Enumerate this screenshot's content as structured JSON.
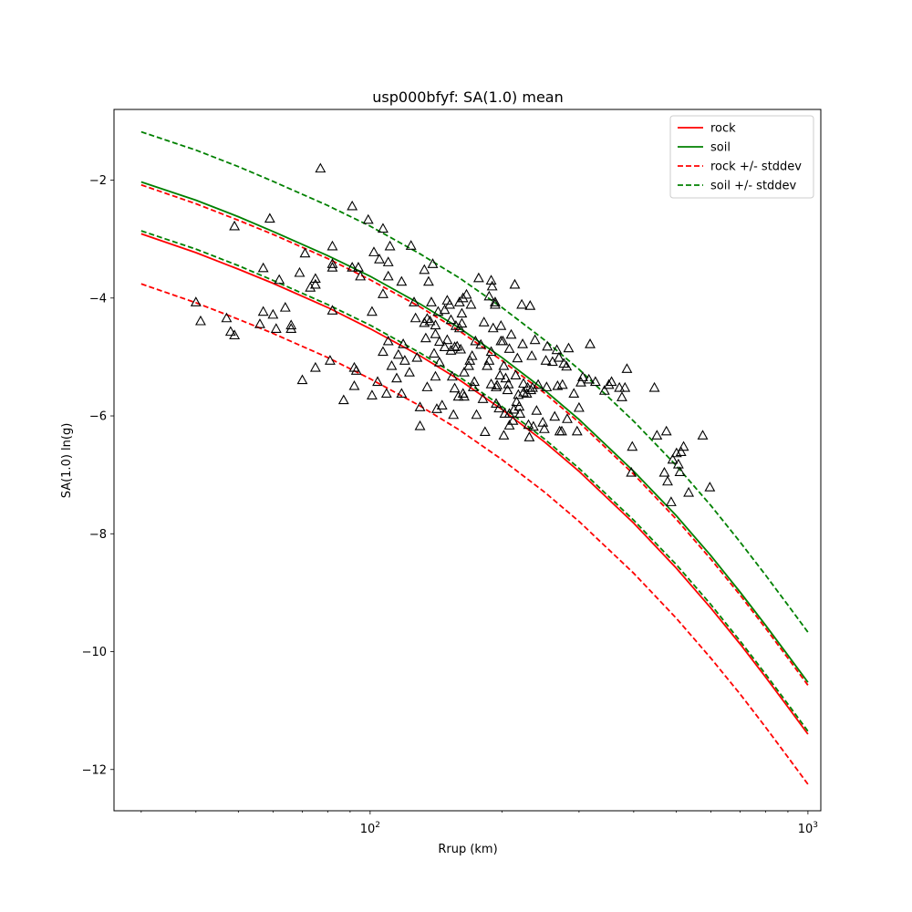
{
  "chart_data": {
    "type": "scatter",
    "title": "usp000bfyf: SA(1.0) mean",
    "xlabel": "Rrup (km)",
    "ylabel": "SA(1.0) ln(g)",
    "xscale": "log",
    "xlim": [
      26,
      1070
    ],
    "ylim": [
      -12.7,
      -0.8
    ],
    "x_ticks": [
      {
        "value": 100,
        "label": "10",
        "sup": "2"
      },
      {
        "value": 1000,
        "label": "10",
        "sup": "3"
      }
    ],
    "y_ticks": [
      {
        "value": -2,
        "label": "−2"
      },
      {
        "value": -4,
        "label": "−4"
      },
      {
        "value": -6,
        "label": "−6"
      },
      {
        "value": -8,
        "label": "−8"
      },
      {
        "value": -10,
        "label": "−10"
      },
      {
        "value": -12,
        "label": "−12"
      }
    ],
    "grid": false,
    "legend_position": "upper right",
    "legend": [
      {
        "label": "rock",
        "color": "#ff0000",
        "dash": "solid"
      },
      {
        "label": "soil",
        "color": "#008000",
        "dash": "solid"
      },
      {
        "label": "rock +/- stddev",
        "color": "#ff0000",
        "dash": "dashed"
      },
      {
        "label": "soil +/- stddev",
        "color": "#008000",
        "dash": "dashed"
      }
    ],
    "curve_x": [
      30,
      40,
      50,
      60,
      80,
      100,
      130,
      160,
      200,
      250,
      300,
      400,
      500,
      600,
      700,
      800,
      900,
      1000
    ],
    "series": [
      {
        "key": "rock",
        "color": "#ff0000",
        "dash": "solid",
        "y": [
          -2.91,
          -3.23,
          -3.51,
          -3.75,
          -4.16,
          -4.52,
          -4.98,
          -5.39,
          -5.89,
          -6.44,
          -6.94,
          -7.82,
          -8.58,
          -9.26,
          -9.87,
          -10.43,
          -10.94,
          -11.4
        ]
      },
      {
        "key": "soil",
        "color": "#008000",
        "dash": "solid",
        "y": [
          -2.03,
          -2.34,
          -2.62,
          -2.87,
          -3.28,
          -3.63,
          -4.1,
          -4.51,
          -5.01,
          -5.56,
          -6.06,
          -6.94,
          -7.69,
          -8.37,
          -8.99,
          -9.55,
          -10.06,
          -10.52
        ]
      },
      {
        "key": "rock_plus",
        "color": "#ff0000",
        "dash": "dashed",
        "y": [
          -2.08,
          -2.4,
          -2.68,
          -2.92,
          -3.33,
          -3.69,
          -4.15,
          -4.56,
          -5.06,
          -5.61,
          -6.11,
          -6.99,
          -7.75,
          -8.43,
          -9.04,
          -9.6,
          -10.11,
          -10.57
        ]
      },
      {
        "key": "rock_minus",
        "color": "#ff0000",
        "dash": "dashed",
        "y": [
          -3.76,
          -4.08,
          -4.36,
          -4.6,
          -5.01,
          -5.37,
          -5.83,
          -6.24,
          -6.74,
          -7.29,
          -7.79,
          -8.67,
          -9.43,
          -10.11,
          -10.72,
          -11.28,
          -11.79,
          -12.25
        ]
      },
      {
        "key": "soil_plus",
        "color": "#008000",
        "dash": "dashed",
        "y": [
          -1.18,
          -1.49,
          -1.77,
          -2.02,
          -2.43,
          -2.78,
          -3.25,
          -3.66,
          -4.16,
          -4.71,
          -5.21,
          -6.09,
          -6.84,
          -7.52,
          -8.14,
          -8.7,
          -9.21,
          -9.67
        ]
      },
      {
        "key": "soil_minus",
        "color": "#008000",
        "dash": "dashed",
        "y": [
          -2.86,
          -3.17,
          -3.45,
          -3.7,
          -4.11,
          -4.46,
          -4.93,
          -5.34,
          -5.84,
          -6.39,
          -6.89,
          -7.77,
          -8.52,
          -9.2,
          -9.82,
          -10.38,
          -10.89,
          -11.35
        ]
      }
    ],
    "points": {
      "marker": "triangle",
      "color": "#000000",
      "data": [
        [
          40,
          -4.07
        ],
        [
          41,
          -4.39
        ],
        [
          47,
          -4.34
        ],
        [
          48,
          -4.57
        ],
        [
          49,
          -4.63
        ],
        [
          49,
          -2.78
        ],
        [
          56,
          -4.44
        ],
        [
          57,
          -3.49
        ],
        [
          57,
          -4.23
        ],
        [
          59,
          -2.65
        ],
        [
          60,
          -4.28
        ],
        [
          61,
          -4.52
        ],
        [
          62,
          -3.69
        ],
        [
          64,
          -4.16
        ],
        [
          66,
          -4.46
        ],
        [
          66,
          -4.52
        ],
        [
          69,
          -3.57
        ],
        [
          70,
          -5.39
        ],
        [
          71,
          -3.24
        ],
        [
          73,
          -3.82
        ],
        [
          75,
          -3.77
        ],
        [
          75,
          -3.67
        ],
        [
          75,
          -5.18
        ],
        [
          77,
          -1.8
        ],
        [
          81,
          -5.06
        ],
        [
          82,
          -3.48
        ],
        [
          82,
          -3.42
        ],
        [
          82,
          -4.21
        ],
        [
          82,
          -3.12
        ],
        [
          87,
          -5.73
        ],
        [
          91,
          -2.44
        ],
        [
          91,
          -3.48
        ],
        [
          92,
          -5.18
        ],
        [
          92,
          -5.49
        ],
        [
          93,
          -5.23
        ],
        [
          94,
          -3.48
        ],
        [
          95,
          -3.63
        ],
        [
          99,
          -2.67
        ],
        [
          101,
          -4.23
        ],
        [
          101,
          -5.65
        ],
        [
          102,
          -3.22
        ],
        [
          104,
          -5.42
        ],
        [
          105,
          -3.34
        ],
        [
          107,
          -2.82
        ],
        [
          107,
          -3.93
        ],
        [
          107,
          -4.91
        ],
        [
          109,
          -5.62
        ],
        [
          110,
          -3.39
        ],
        [
          110,
          -3.63
        ],
        [
          110,
          -4.73
        ],
        [
          111,
          -3.12
        ],
        [
          112,
          -5.15
        ],
        [
          115,
          -5.36
        ],
        [
          116,
          -4.96
        ],
        [
          118,
          -5.62
        ],
        [
          118,
          -3.72
        ],
        [
          119,
          -4.78
        ],
        [
          120,
          -5.06
        ],
        [
          123,
          -5.26
        ],
        [
          124,
          -3.11
        ],
        [
          126,
          -4.07
        ],
        [
          127,
          -4.34
        ],
        [
          128,
          -5.01
        ],
        [
          130,
          -5.85
        ],
        [
          130,
          -6.17
        ],
        [
          133,
          -4.42
        ],
        [
          133,
          -3.52
        ],
        [
          134,
          -4.68
        ],
        [
          135,
          -4.35
        ],
        [
          135,
          -5.51
        ],
        [
          136,
          -3.72
        ],
        [
          137,
          -4.39
        ],
        [
          138,
          -4.07
        ],
        [
          139,
          -3.42
        ],
        [
          140,
          -4.94
        ],
        [
          141,
          -4.46
        ],
        [
          141,
          -5.33
        ],
        [
          141,
          -4.61
        ],
        [
          142,
          -5.88
        ],
        [
          143,
          -4.23
        ],
        [
          144,
          -5.09
        ],
        [
          144,
          -4.74
        ],
        [
          146,
          -5.82
        ],
        [
          148,
          -4.2
        ],
        [
          148,
          -4.83
        ],
        [
          150,
          -4.04
        ],
        [
          150,
          -4.71
        ],
        [
          152,
          -4.11
        ],
        [
          153,
          -4.37
        ],
        [
          153,
          -4.89
        ],
        [
          154,
          -5.33
        ],
        [
          155,
          -5.98
        ],
        [
          156,
          -5.53
        ],
        [
          156,
          -4.83
        ],
        [
          157,
          -4.47
        ],
        [
          158,
          -4.82
        ],
        [
          159,
          -5.67
        ],
        [
          160,
          -4.51
        ],
        [
          160,
          -4.07
        ],
        [
          161,
          -4.87
        ],
        [
          162,
          -4.43
        ],
        [
          162,
          -4.26
        ],
        [
          163,
          -4.0
        ],
        [
          163,
          -5.62
        ],
        [
          164,
          -5.26
        ],
        [
          164,
          -5.67
        ],
        [
          166,
          -3.94
        ],
        [
          168,
          -5.15
        ],
        [
          169,
          -5.06
        ],
        [
          170,
          -4.11
        ],
        [
          171,
          -4.98
        ],
        [
          172,
          -5.51
        ],
        [
          173,
          -5.42
        ],
        [
          174,
          -4.73
        ],
        [
          175,
          -5.98
        ],
        [
          177,
          -3.66
        ],
        [
          179,
          -4.79
        ],
        [
          181,
          -5.71
        ],
        [
          182,
          -4.41
        ],
        [
          183,
          -6.27
        ],
        [
          185,
          -5.15
        ],
        [
          187,
          -3.97
        ],
        [
          187,
          -5.06
        ],
        [
          189,
          -3.7
        ],
        [
          189,
          -4.91
        ],
        [
          189,
          -5.46
        ],
        [
          190,
          -3.8
        ],
        [
          191,
          -4.51
        ],
        [
          193,
          -4.07
        ],
        [
          193,
          -4.11
        ],
        [
          194,
          -5.79
        ],
        [
          194,
          -5.51
        ],
        [
          195,
          -5.48
        ],
        [
          197,
          -5.87
        ],
        [
          198,
          -5.31
        ],
        [
          199,
          -4.73
        ],
        [
          199,
          -4.47
        ],
        [
          201,
          -4.73
        ],
        [
          202,
          -6.33
        ],
        [
          202,
          -5.15
        ],
        [
          203,
          -5.96
        ],
        [
          204,
          -5.36
        ],
        [
          206,
          -5.56
        ],
        [
          207,
          -5.46
        ],
        [
          208,
          -5.96
        ],
        [
          208,
          -6.16
        ],
        [
          208,
          -4.86
        ],
        [
          210,
          -4.62
        ],
        [
          212,
          -6.08
        ],
        [
          213,
          -5.89
        ],
        [
          214,
          -3.77
        ],
        [
          215,
          -5.31
        ],
        [
          216,
          -5.76
        ],
        [
          217,
          -5.02
        ],
        [
          218,
          -5.64
        ],
        [
          219,
          -5.84
        ],
        [
          220,
          -5.96
        ],
        [
          222,
          -4.11
        ],
        [
          223,
          -4.78
        ],
        [
          224,
          -5.45
        ],
        [
          224,
          -5.6
        ],
        [
          228,
          -5.62
        ],
        [
          229,
          -5.52
        ],
        [
          230,
          -6.15
        ],
        [
          231,
          -6.36
        ],
        [
          232,
          -4.13
        ],
        [
          233,
          -5.56
        ],
        [
          234,
          -4.98
        ],
        [
          235,
          -5.52
        ],
        [
          236,
          -6.18
        ],
        [
          238,
          -4.71
        ],
        [
          240,
          -5.91
        ],
        [
          242,
          -5.47
        ],
        [
          248,
          -6.11
        ],
        [
          250,
          -6.22
        ],
        [
          252,
          -5.06
        ],
        [
          253,
          -5.51
        ],
        [
          254,
          -4.82
        ],
        [
          261,
          -5.08
        ],
        [
          264,
          -6.01
        ],
        [
          267,
          -4.88
        ],
        [
          268,
          -5.49
        ],
        [
          270,
          -5.01
        ],
        [
          271,
          -6.26
        ],
        [
          274,
          -6.26
        ],
        [
          275,
          -5.47
        ],
        [
          277,
          -5.11
        ],
        [
          281,
          -5.16
        ],
        [
          282,
          -6.05
        ],
        [
          284,
          -4.85
        ],
        [
          292,
          -5.62
        ],
        [
          297,
          -6.26
        ],
        [
          300,
          -5.86
        ],
        [
          303,
          -5.43
        ],
        [
          306,
          -5.34
        ],
        [
          316,
          -5.38
        ],
        [
          318,
          -4.78
        ],
        [
          327,
          -5.42
        ],
        [
          343,
          -5.57
        ],
        [
          351,
          -5.47
        ],
        [
          356,
          -5.42
        ],
        [
          371,
          -5.52
        ],
        [
          376,
          -5.68
        ],
        [
          382,
          -5.52
        ],
        [
          386,
          -5.2
        ],
        [
          395,
          -6.96
        ],
        [
          397,
          -6.52
        ],
        [
          446,
          -5.52
        ],
        [
          452,
          -6.33
        ],
        [
          470,
          -6.96
        ],
        [
          475,
          -6.26
        ],
        [
          478,
          -7.11
        ],
        [
          487,
          -7.46
        ],
        [
          491,
          -6.74
        ],
        [
          501,
          -6.63
        ],
        [
          506,
          -6.82
        ],
        [
          510,
          -6.95
        ],
        [
          513,
          -6.61
        ],
        [
          520,
          -6.52
        ],
        [
          534,
          -7.3
        ],
        [
          575,
          -6.33
        ],
        [
          597,
          -7.21
        ]
      ]
    }
  }
}
